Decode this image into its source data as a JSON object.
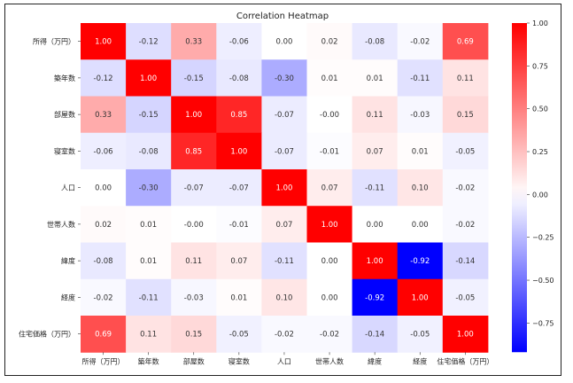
{
  "chart_data": {
    "type": "heatmap",
    "title": "Correlation Heatmap",
    "xlabel": "",
    "ylabel": "",
    "categories": [
      "所得（万円）",
      "築年数",
      "部屋数",
      "寝室数",
      "人口",
      "世帯人数",
      "緯度",
      "経度",
      "住宅価格（万円）"
    ],
    "matrix": [
      [
        1.0,
        -0.12,
        0.33,
        -0.06,
        0.0,
        0.02,
        -0.08,
        -0.02,
        0.69
      ],
      [
        -0.12,
        1.0,
        -0.15,
        -0.08,
        -0.3,
        0.01,
        0.01,
        -0.11,
        0.11
      ],
      [
        0.33,
        -0.15,
        1.0,
        0.85,
        -0.07,
        -0.0,
        0.11,
        -0.03,
        0.15
      ],
      [
        -0.06,
        -0.08,
        0.85,
        1.0,
        -0.07,
        -0.01,
        0.07,
        0.01,
        -0.05
      ],
      [
        0.0,
        -0.3,
        -0.07,
        -0.07,
        1.0,
        0.07,
        -0.11,
        0.1,
        -0.02
      ],
      [
        0.02,
        0.01,
        -0.0,
        -0.01,
        0.07,
        1.0,
        0.0,
        0.0,
        -0.02
      ],
      [
        -0.08,
        0.01,
        0.11,
        0.07,
        -0.11,
        0.0,
        1.0,
        -0.92,
        -0.14
      ],
      [
        -0.02,
        -0.11,
        -0.03,
        0.01,
        0.1,
        0.0,
        -0.92,
        1.0,
        -0.05
      ],
      [
        0.69,
        0.11,
        0.15,
        -0.05,
        -0.02,
        -0.02,
        -0.14,
        -0.05,
        1.0
      ]
    ],
    "colorbar": {
      "ticks": [
        1.0,
        0.75,
        0.5,
        0.25,
        0.0,
        -0.25,
        -0.5,
        -0.75
      ],
      "vmin": -0.92,
      "vmax": 1.0,
      "colormap": "bwr"
    },
    "colors": {
      "low": "#0000ff",
      "mid": "#ffffff",
      "high": "#ff0000"
    },
    "grid": false,
    "legend": "colorbar-right"
  }
}
